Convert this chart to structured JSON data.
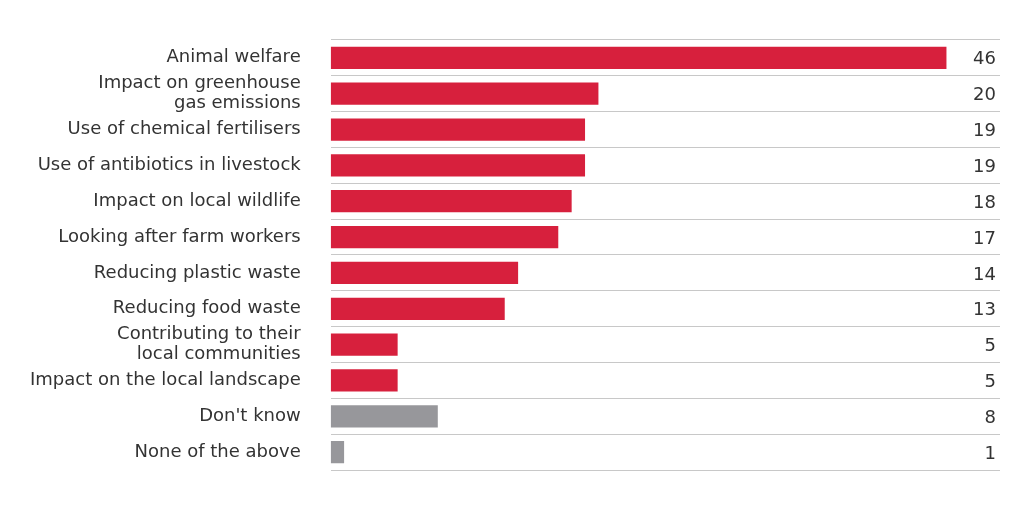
{
  "chart_data": {
    "type": "bar",
    "orientation": "horizontal",
    "categories": [
      "Animal welfare",
      "Impact on greenhouse\ngas emissions",
      "Use of chemical fertilisers",
      "Use of antibiotics in livestock",
      "Impact on local wildlife",
      "Looking after farm workers",
      "Reducing plastic waste",
      "Reducing food waste",
      "Contributing to their\nlocal communities",
      "Impact on the local landscape",
      "Don't know",
      "None of the above"
    ],
    "values": [
      46,
      20,
      19,
      19,
      18,
      17,
      14,
      13,
      5,
      5,
      8,
      1
    ],
    "colors": [
      "#d7203d",
      "#d7203d",
      "#d7203d",
      "#d7203d",
      "#d7203d",
      "#d7203d",
      "#d7203d",
      "#d7203d",
      "#d7203d",
      "#d7203d",
      "#97979b",
      "#97979b"
    ],
    "xlim": [
      0,
      50
    ],
    "data_labels": true,
    "grid": "y",
    "tick_labels": "y"
  }
}
